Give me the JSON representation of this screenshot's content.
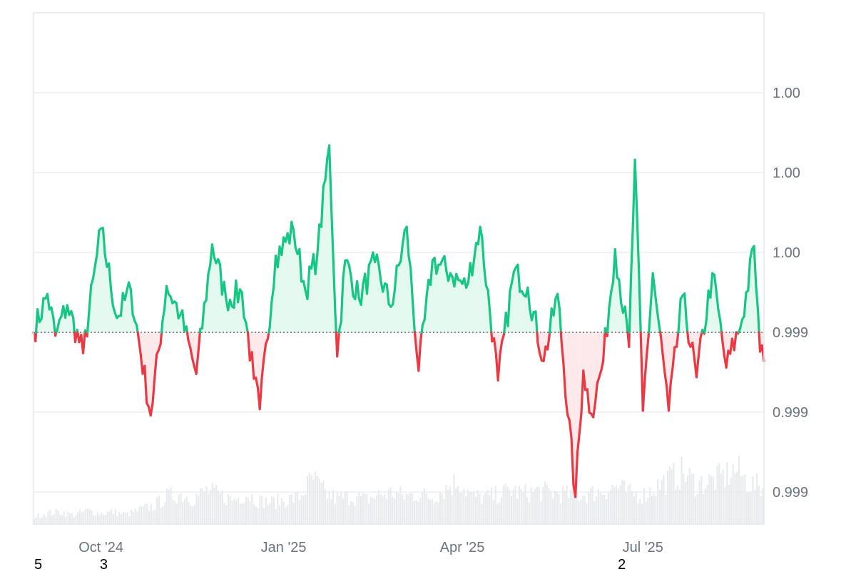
{
  "chart_data": {
    "type": "line",
    "title": "",
    "xlabel": "",
    "ylabel": "",
    "baseline": 1.0,
    "y_ticks": [
      "1.00",
      "1.00",
      "1.00",
      "0.999",
      "0.999",
      "0.999"
    ],
    "y_tick_values": [
      1.0015,
      1.001,
      1.0005,
      1.0,
      0.9995,
      0.999
    ],
    "ylim": [
      0.9988,
      1.002
    ],
    "x_ticks": [
      "Oct '24",
      "Jan '25",
      "Apr '25",
      "Jul '25"
    ],
    "x_tick_dates": [
      "2024-10-01",
      "2025-01-01",
      "2025-04-01",
      "2025-07-01"
    ],
    "xlim": [
      "2024-08-28",
      "2025-08-31"
    ],
    "grid": true,
    "legend": "none",
    "corner_labels": [
      {
        "text": "5",
        "date": "2024-08-28"
      },
      {
        "text": "3",
        "date": "2024-09-30"
      },
      {
        "text": "2",
        "date": "2025-06-18"
      }
    ],
    "colors": {
      "up_line": "#16c784",
      "down_line": "#ea3943",
      "up_fill": "#e3f8ee",
      "down_fill": "#fde8ea",
      "baseline": "#6b7280",
      "grid": "#eeeeee",
      "frame": "#e5e7eb",
      "volume": "#e8ebee"
    },
    "series": [
      {
        "x": [
          "2024-08-28",
          "2024-09-04",
          "2024-09-08",
          "2024-09-14",
          "2024-09-22",
          "2024-10-01",
          "2024-10-09",
          "2024-10-16",
          "2024-10-26",
          "2024-11-03",
          "2024-11-10",
          "2024-11-18",
          "2024-11-26",
          "2024-12-03",
          "2024-12-11",
          "2024-12-17",
          "2024-12-20",
          "2024-12-28",
          "2025-01-06",
          "2025-01-12",
          "2025-01-18",
          "2025-01-24",
          "2025-01-28",
          "2025-02-01",
          "2025-02-08",
          "2025-02-16",
          "2025-02-24",
          "2025-03-04",
          "2025-03-10",
          "2025-03-17",
          "2025-03-26",
          "2025-04-03",
          "2025-04-10",
          "2025-04-19",
          "2025-04-27",
          "2025-05-04",
          "2025-05-12",
          "2025-05-19",
          "2025-05-28",
          "2025-06-01",
          "2025-06-05",
          "2025-06-11",
          "2025-06-17",
          "2025-06-24",
          "2025-06-27",
          "2025-07-01",
          "2025-07-06",
          "2025-07-14",
          "2025-07-21",
          "2025-07-28",
          "2025-08-05",
          "2025-08-12",
          "2025-08-20",
          "2025-08-26",
          "2025-08-29",
          "2025-08-31"
        ],
        "values": [
          1.0,
          1.00024,
          0.99998,
          1.00017,
          0.99987,
          1.00065,
          1.00009,
          1.00027,
          0.99948,
          1.00029,
          1.00011,
          0.99974,
          1.00055,
          1.00021,
          1.00025,
          0.99971,
          0.99952,
          1.00048,
          1.00064,
          1.00026,
          1.00049,
          1.00117,
          0.99985,
          1.00045,
          1.00021,
          1.00044,
          1.00016,
          1.00066,
          0.99976,
          1.00045,
          1.00037,
          1.00028,
          1.00066,
          0.9997,
          1.00038,
          1.00028,
          0.99982,
          1.00024,
          0.99897,
          0.99976,
          0.99949,
          0.99982,
          1.00052,
          0.99991,
          1.00108,
          0.99951,
          1.00037,
          0.99951,
          1.00023,
          0.99972,
          1.00037,
          0.99978,
          1.00008,
          1.00054,
          0.99988,
          0.99982
        ]
      }
    ],
    "volume_relative": [
      0.12,
      0.18,
      0.2,
      0.15,
      0.22,
      0.18,
      0.2,
      0.16,
      0.24,
      0.3,
      0.45,
      0.5,
      0.42,
      0.55,
      0.48,
      0.4,
      0.5,
      0.38,
      0.36,
      0.4,
      0.44,
      0.75,
      0.5,
      0.42,
      0.46,
      0.4,
      0.48,
      0.52,
      0.46,
      0.5,
      0.44,
      0.58,
      0.72,
      0.46,
      0.44,
      0.48,
      0.56,
      0.5,
      0.55,
      0.52,
      0.5,
      0.48,
      0.5,
      0.56,
      0.62,
      0.5,
      0.48,
      0.62,
      0.75,
      0.85,
      0.66,
      0.7,
      0.78,
      0.9,
      0.66,
      0.6
    ]
  }
}
